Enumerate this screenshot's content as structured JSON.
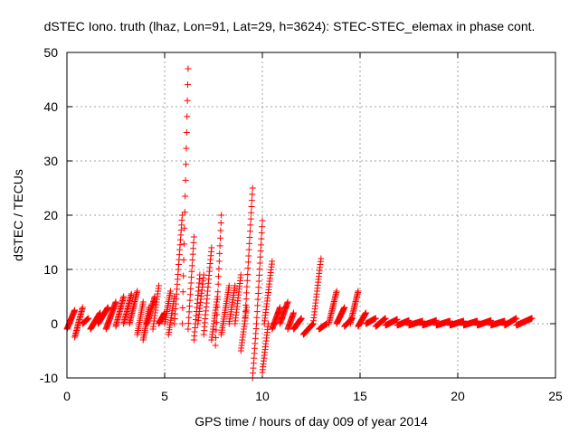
{
  "chart_data": {
    "type": "scatter",
    "title": "dSTEC Iono. truth (lhaz, Lon=91, Lat=29, h=3624): STEC-STEC_elemax in phase cont.",
    "xlabel": "GPS time / hours of day 009 of year 2014",
    "ylabel": "dSTEC  / TECUs",
    "xlim": [
      0,
      25
    ],
    "ylim": [
      -10,
      50
    ],
    "x_ticks": [
      0,
      5,
      10,
      15,
      20,
      25
    ],
    "y_ticks": [
      -10,
      0,
      10,
      20,
      30,
      40,
      50
    ],
    "grid": true,
    "marker": "+",
    "series_color": "#ff0000",
    "arcs": [
      {
        "x": [
          0.0,
          0.4
        ],
        "y": [
          -1,
          2.5
        ]
      },
      {
        "x": [
          0.4,
          0.8
        ],
        "y": [
          -2.5,
          3
        ]
      },
      {
        "x": [
          0.8,
          1.1
        ],
        "y": [
          0,
          1
        ]
      },
      {
        "x": [
          1.2,
          1.7
        ],
        "y": [
          -1,
          2
        ]
      },
      {
        "x": [
          1.6,
          2.1
        ],
        "y": [
          0,
          3
        ]
      },
      {
        "x": [
          2.0,
          2.5
        ],
        "y": [
          -1,
          4
        ]
      },
      {
        "x": [
          2.5,
          2.9
        ],
        "y": [
          -0.5,
          5
        ]
      },
      {
        "x": [
          2.9,
          3.3
        ],
        "y": [
          0,
          5.5
        ]
      },
      {
        "x": [
          3.2,
          3.6
        ],
        "y": [
          0,
          6
        ]
      },
      {
        "x": [
          3.6,
          3.9
        ],
        "y": [
          -2,
          4
        ]
      },
      {
        "x": [
          3.9,
          4.2
        ],
        "y": [
          -3,
          3
        ]
      },
      {
        "x": [
          4.1,
          4.5
        ],
        "y": [
          0,
          5
        ]
      },
      {
        "x": [
          4.4,
          4.7
        ],
        "y": [
          -1,
          7
        ]
      },
      {
        "x": [
          4.7,
          5.0
        ],
        "y": [
          0,
          2
        ]
      },
      {
        "x": [
          5.0,
          5.3
        ],
        "y": [
          0,
          6
        ]
      },
      {
        "x": [
          5.2,
          5.5
        ],
        "y": [
          -2,
          5
        ]
      },
      {
        "x": [
          5.5,
          5.9
        ],
        "y": [
          0,
          20
        ]
      },
      {
        "x": [
          5.9,
          6.2
        ],
        "y": [
          0,
          47
        ]
      },
      {
        "x": [
          6.2,
          6.5
        ],
        "y": [
          -1,
          16
        ]
      },
      {
        "x": [
          6.5,
          6.8
        ],
        "y": [
          -3,
          9
        ]
      },
      {
        "x": [
          6.7,
          7.0
        ],
        "y": [
          0,
          9
        ]
      },
      {
        "x": [
          7.0,
          7.4
        ],
        "y": [
          -2,
          14
        ]
      },
      {
        "x": [
          7.4,
          7.7
        ],
        "y": [
          -3,
          5
        ]
      },
      {
        "x": [
          7.6,
          7.9
        ],
        "y": [
          -4,
          20
        ]
      },
      {
        "x": [
          7.9,
          8.3
        ],
        "y": [
          -2,
          7
        ]
      },
      {
        "x": [
          8.3,
          8.6
        ],
        "y": [
          0,
          7
        ]
      },
      {
        "x": [
          8.6,
          8.9
        ],
        "y": [
          0,
          9
        ]
      },
      {
        "x": [
          8.9,
          9.2
        ],
        "y": [
          -5,
          3
        ]
      },
      {
        "x": [
          9.1,
          9.5
        ],
        "y": [
          0,
          25
        ]
      },
      {
        "x": [
          9.5,
          9.7
        ],
        "y": [
          -10,
          0
        ]
      },
      {
        "x": [
          9.7,
          10.0
        ],
        "y": [
          0,
          19
        ]
      },
      {
        "x": [
          10.0,
          10.3
        ],
        "y": [
          -9,
          0
        ]
      },
      {
        "x": [
          10.1,
          10.5
        ],
        "y": [
          0,
          11.5
        ]
      },
      {
        "x": [
          10.5,
          10.9
        ],
        "y": [
          -1,
          3
        ]
      },
      {
        "x": [
          10.9,
          11.3
        ],
        "y": [
          0,
          4
        ]
      },
      {
        "x": [
          11.3,
          11.6
        ],
        "y": [
          -1,
          2
        ]
      },
      {
        "x": [
          11.6,
          12.0
        ],
        "y": [
          -1,
          1
        ]
      },
      {
        "x": [
          12.1,
          12.6
        ],
        "y": [
          -2,
          0
        ]
      },
      {
        "x": [
          12.6,
          13.0
        ],
        "y": [
          0,
          12
        ]
      },
      {
        "x": [
          12.9,
          13.3
        ],
        "y": [
          -1,
          0
        ]
      },
      {
        "x": [
          13.4,
          13.8
        ],
        "y": [
          0,
          6
        ]
      },
      {
        "x": [
          13.8,
          14.2
        ],
        "y": [
          0,
          3
        ]
      },
      {
        "x": [
          14.2,
          14.6
        ],
        "y": [
          -0.5,
          1
        ]
      },
      {
        "x": [
          14.5,
          14.9
        ],
        "y": [
          0,
          6
        ]
      },
      {
        "x": [
          14.9,
          15.3
        ],
        "y": [
          -0.5,
          2
        ]
      },
      {
        "x": [
          15.3,
          15.8
        ],
        "y": [
          0,
          1
        ]
      },
      {
        "x": [
          15.8,
          16.3
        ],
        "y": [
          -0.5,
          1
        ]
      },
      {
        "x": [
          16.3,
          16.9
        ],
        "y": [
          -0.3,
          0.8
        ]
      },
      {
        "x": [
          16.9,
          17.5
        ],
        "y": [
          -0.3,
          0.6
        ]
      },
      {
        "x": [
          17.5,
          18.2
        ],
        "y": [
          -0.3,
          0.5
        ]
      },
      {
        "x": [
          18.2,
          18.9
        ],
        "y": [
          -0.3,
          0.6
        ]
      },
      {
        "x": [
          18.9,
          19.6
        ],
        "y": [
          -0.3,
          0.5
        ]
      },
      {
        "x": [
          19.6,
          20.3
        ],
        "y": [
          -0.3,
          0.5
        ]
      },
      {
        "x": [
          20.3,
          21.0
        ],
        "y": [
          -0.3,
          0.5
        ]
      },
      {
        "x": [
          21.0,
          21.7
        ],
        "y": [
          -0.3,
          0.6
        ]
      },
      {
        "x": [
          21.7,
          22.4
        ],
        "y": [
          -0.3,
          0.5
        ]
      },
      {
        "x": [
          22.4,
          23.0
        ],
        "y": [
          -0.3,
          1
        ]
      },
      {
        "x": [
          23.0,
          23.8
        ],
        "y": [
          -0.3,
          1
        ]
      }
    ]
  }
}
